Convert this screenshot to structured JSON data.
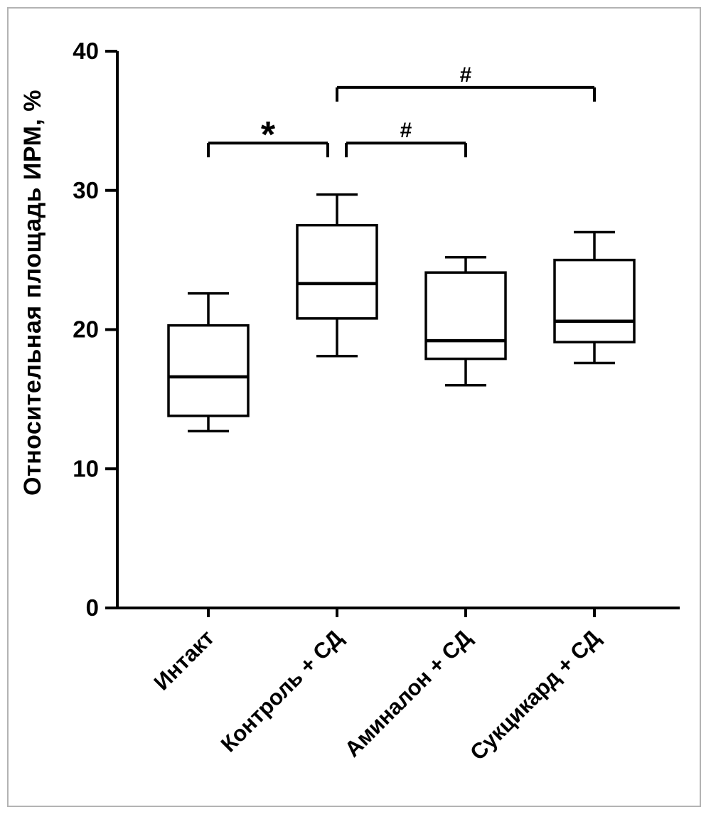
{
  "figure": {
    "background": "#ffffff",
    "border_color": "#b3b3b3",
    "axis_color": "#000000",
    "box_fill": "#ffffff"
  },
  "chart_data": {
    "type": "box",
    "title": "",
    "xlabel": "",
    "ylabel": "Относительная площадь ИРМ, %",
    "ylim": [
      0,
      40
    ],
    "yticks": [
      0,
      10,
      20,
      30,
      40
    ],
    "grid": false,
    "legend": "none",
    "categories": [
      "Интакт",
      "Контроль + СД",
      "Аминалон + СД",
      "Сукцикард + СД"
    ],
    "series": [
      {
        "name": "Интакт",
        "min": 12.7,
        "q1": 13.8,
        "median": 16.6,
        "q3": 20.3,
        "max": 22.6
      },
      {
        "name": "Контроль + СД",
        "min": 18.1,
        "q1": 20.8,
        "median": 23.3,
        "q3": 27.5,
        "max": 29.7
      },
      {
        "name": "Аминалон + СД",
        "min": 16.0,
        "q1": 17.9,
        "median": 19.2,
        "q3": 24.1,
        "max": 25.2
      },
      {
        "name": "Сукцикард + СД",
        "min": 17.6,
        "q1": 19.1,
        "median": 20.6,
        "q3": 25.0,
        "max": 27.0
      }
    ],
    "annotations": [
      {
        "label": "*",
        "from": 0,
        "to": 1,
        "y": 33.4,
        "trim_to": true
      },
      {
        "label": "#",
        "from": 1,
        "to": 2,
        "y": 33.4,
        "trim_from": true
      },
      {
        "label": "#",
        "from": 1,
        "to": 3,
        "y": 37.4
      }
    ]
  }
}
